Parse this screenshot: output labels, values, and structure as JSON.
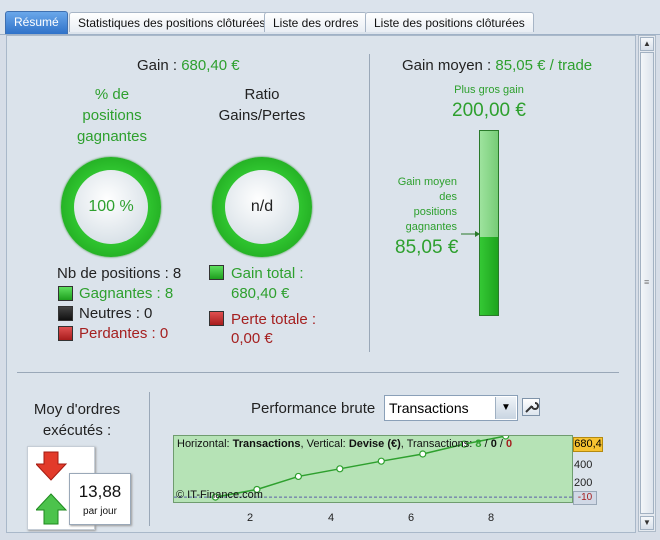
{
  "tabs": [
    {
      "label": "Résumé",
      "active": true
    },
    {
      "label": "Statistiques des positions clôturées",
      "active": false
    },
    {
      "label": "Liste des ordres",
      "active": false
    },
    {
      "label": "Liste des positions clôturées",
      "active": false
    }
  ],
  "gain": {
    "label": "Gain :",
    "value": "680,40 €"
  },
  "pct_gagnantes": {
    "l1": "% de",
    "l2": "positions",
    "l3": "gagnantes",
    "value": "100 %"
  },
  "ratio": {
    "l1": "Ratio",
    "l2": "Gains/Pertes",
    "value": "n/d"
  },
  "positions": {
    "nb_label": "Nb de positions : 8",
    "gagnantes": "Gagnantes : 8",
    "neutres": "Neutres : 0",
    "perdantes": "Perdantes : 0"
  },
  "totals": {
    "gain_label": "Gain total :",
    "gain_value": "680,40 €",
    "perte_label": "Perte totale :",
    "perte_value": "0,00 €"
  },
  "gain_moyen": {
    "label": "Gain moyen :",
    "value": "85,05 € / trade",
    "plus_gros_label": "Plus gros gain",
    "plus_gros_value": "200,00 €",
    "moyen_l1": "Gain moyen",
    "moyen_l2": "des",
    "moyen_l3": "positions",
    "moyen_l4": "gagnantes",
    "moyen_value": "85,05 €",
    "fill_fraction": 0.425
  },
  "moy_ordres": {
    "l1": "Moy d'ordres",
    "l2": "exécutés :",
    "value": "13,88",
    "unit": "par jour"
  },
  "performance": {
    "label": "Performance brute",
    "select_value": "Transactions",
    "info_h_label": "Horizontal:",
    "info_h_value": "Transactions",
    "info_v_label": ", Vertical:",
    "info_v_value": "Devise (€)",
    "info_t_label": ", Transactions:",
    "info_t_win": "8",
    "info_t_sep": " / ",
    "info_t_neutral": "0",
    "info_t_sep2": " / ",
    "info_t_loss": "0",
    "watermark": "© IT-Finance.com",
    "max_badge": "680,4",
    "min_badge": "-10"
  },
  "chart_data": {
    "type": "line",
    "x": [
      1,
      2,
      3,
      4,
      5,
      6,
      7,
      8
    ],
    "values": [
      0,
      85,
      230,
      315,
      400,
      480,
      590,
      680.4
    ],
    "xticks": [
      "2",
      "4",
      "6",
      "8"
    ],
    "yticks": [
      "400",
      "200"
    ],
    "xlim": [
      0,
      9.6
    ],
    "ylim": [
      -10,
      680.4
    ],
    "color": "#2ea02e"
  },
  "colors": {
    "green": "#2ea02e",
    "red": "#a52020",
    "tab_active": "#2f72c9"
  }
}
